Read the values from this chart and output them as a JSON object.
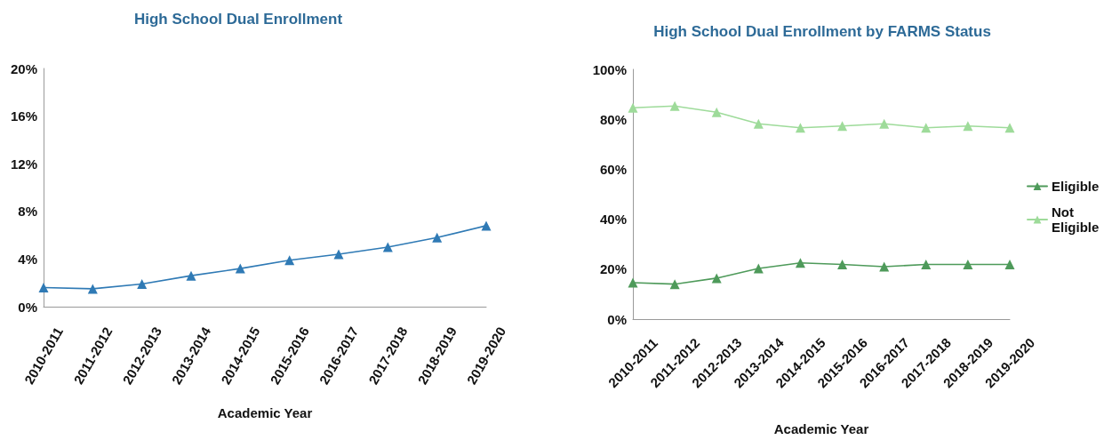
{
  "chart_data": [
    {
      "type": "line",
      "title": "High School Dual Enrollment",
      "xlabel": "Academic Year",
      "categories": [
        "2010-2011",
        "2011-2012",
        "2012-2013",
        "2013-2014",
        "2014-2015",
        "2015-2016",
        "2016-2017",
        "2017-2018",
        "2018-2019",
        "2019-2020"
      ],
      "values": [
        1.6,
        1.5,
        1.9,
        2.6,
        3.2,
        3.9,
        4.4,
        5.0,
        5.8,
        6.8
      ],
      "color": "#2f7ab5",
      "ylim": [
        0,
        20
      ],
      "yticks": [
        {
          "value": 0,
          "label": "0%"
        },
        {
          "value": 4,
          "label": "4%"
        },
        {
          "value": 8,
          "label": "8%"
        },
        {
          "value": 12,
          "label": "12%"
        },
        {
          "value": 16,
          "label": "16%"
        },
        {
          "value": 20,
          "label": "20%"
        }
      ],
      "marker": "triangle",
      "line_style": "solid",
      "grid": false,
      "legend": false
    },
    {
      "type": "line",
      "title": "High School Dual Enrollment by FARMS Status",
      "xlabel": "Academic Year",
      "categories": [
        "2010-2011",
        "2011-2012",
        "2012-2013",
        "2013-2014",
        "2014-2015",
        "2015-2016",
        "2016-2017",
        "2017-2018",
        "2018-2019",
        "2019-2020"
      ],
      "series": [
        {
          "name": "Eligible",
          "color": "#4e9a5a",
          "values": [
            14.6,
            14.0,
            16.4,
            20.3,
            22.5,
            21.9,
            21.0,
            21.9,
            21.9,
            21.9
          ]
        },
        {
          "name": "Not Eligible",
          "color": "#9edb9a",
          "values": [
            84.6,
            85.3,
            82.8,
            78.2,
            76.6,
            77.3,
            78.2,
            76.6,
            77.3,
            76.6
          ]
        }
      ],
      "ylim": [
        0,
        100
      ],
      "yticks": [
        {
          "value": 0,
          "label": "0%"
        },
        {
          "value": 20,
          "label": "20%"
        },
        {
          "value": 40,
          "label": "40%"
        },
        {
          "value": 60,
          "label": "60%"
        },
        {
          "value": 80,
          "label": "80%"
        },
        {
          "value": 100,
          "label": "100%"
        }
      ],
      "marker": "triangle",
      "line_style": "solid",
      "grid": false,
      "legend": "right"
    }
  ]
}
